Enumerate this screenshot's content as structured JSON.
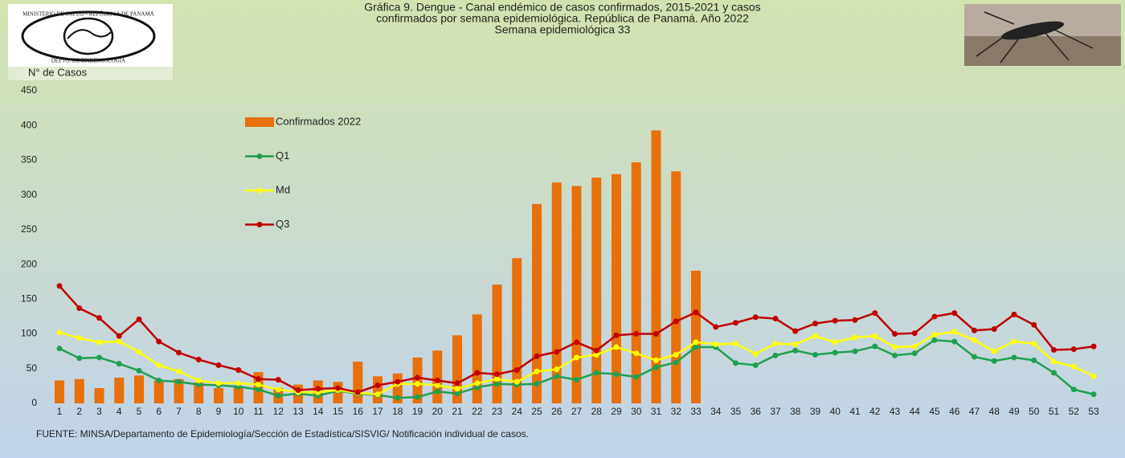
{
  "logo": {
    "top": "MINISTERIO DE SALUD - REPÚBLICA DE PANAMÁ",
    "bottom": "DEPTO. DE EPIDEMIOLOGÍA"
  },
  "chart_data": {
    "type": "combo",
    "title": [
      "Gráfica 9. Dengue - Canal endémico de casos confirmados, 2015-2021 y casos",
      "confirmados por semana epidemiológica. República de Panamá. Año 2022",
      "Semana epidemiológica 33"
    ],
    "y_label": "N° de Casos",
    "source": "FUENTE: MINSA/Departamento de Epidemiología/Sección de Estadística/SISVIG/ Notificación individual de casos.",
    "categories": [
      1,
      2,
      3,
      4,
      5,
      6,
      7,
      8,
      9,
      10,
      11,
      12,
      13,
      14,
      15,
      16,
      17,
      18,
      19,
      20,
      21,
      22,
      23,
      24,
      25,
      26,
      27,
      28,
      29,
      30,
      31,
      32,
      33,
      34,
      35,
      36,
      37,
      38,
      39,
      40,
      41,
      42,
      43,
      44,
      45,
      46,
      47,
      48,
      49,
      50,
      51,
      52,
      53
    ],
    "ylim": [
      0,
      450
    ],
    "yticks": [
      0,
      50,
      100,
      150,
      200,
      250,
      300,
      350,
      400,
      450
    ],
    "series": [
      {
        "name": "Confirmados 2022",
        "kind": "bar",
        "color": "#e8700a",
        "values": [
          33,
          35,
          22,
          37,
          40,
          33,
          35,
          30,
          22,
          25,
          45,
          22,
          27,
          33,
          31,
          60,
          39,
          43,
          66,
          76,
          98,
          128,
          171,
          209,
          287,
          318,
          313,
          325,
          330,
          347,
          393,
          334,
          191,
          null,
          null,
          null,
          null,
          null,
          null,
          null,
          null,
          null,
          null,
          null,
          null,
          null,
          null,
          null,
          null,
          null,
          null,
          null,
          null
        ]
      },
      {
        "name": "Q1",
        "kind": "line",
        "color": "#1fa050",
        "values": [
          79,
          65,
          66,
          57,
          47,
          33,
          31,
          27,
          26,
          24,
          20,
          11,
          14,
          11,
          18,
          14,
          12,
          8,
          9,
          17,
          14,
          23,
          28,
          27,
          28,
          39,
          34,
          44,
          42,
          38,
          52,
          59,
          81,
          81,
          58,
          55,
          69,
          76,
          70,
          73,
          75,
          82,
          69,
          72,
          91,
          89,
          67,
          61,
          66,
          62,
          44,
          20,
          13
        ]
      },
      {
        "name": "Md",
        "kind": "line",
        "color": "#ffff00",
        "values": [
          102,
          94,
          88,
          89,
          74,
          55,
          46,
          33,
          29,
          29,
          27,
          20,
          16,
          16,
          19,
          15,
          13,
          28,
          28,
          26,
          21,
          29,
          35,
          31,
          46,
          49,
          66,
          70,
          81,
          72,
          62,
          70,
          88,
          85,
          86,
          71,
          86,
          85,
          97,
          88,
          95,
          97,
          81,
          82,
          99,
          103,
          91,
          75,
          89,
          86,
          60,
          53,
          39
        ]
      },
      {
        "name": "Q3",
        "kind": "line",
        "color": "#c00000",
        "values": [
          169,
          137,
          123,
          97,
          121,
          89,
          73,
          63,
          55,
          48,
          35,
          34,
          19,
          21,
          22,
          16,
          26,
          31,
          37,
          33,
          29,
          44,
          42,
          48,
          68,
          74,
          88,
          76,
          98,
          100,
          100,
          118,
          131,
          110,
          116,
          124,
          122,
          104,
          115,
          119,
          120,
          130,
          100,
          101,
          125,
          130,
          105,
          107,
          128,
          113,
          77,
          78,
          82
        ]
      }
    ]
  }
}
